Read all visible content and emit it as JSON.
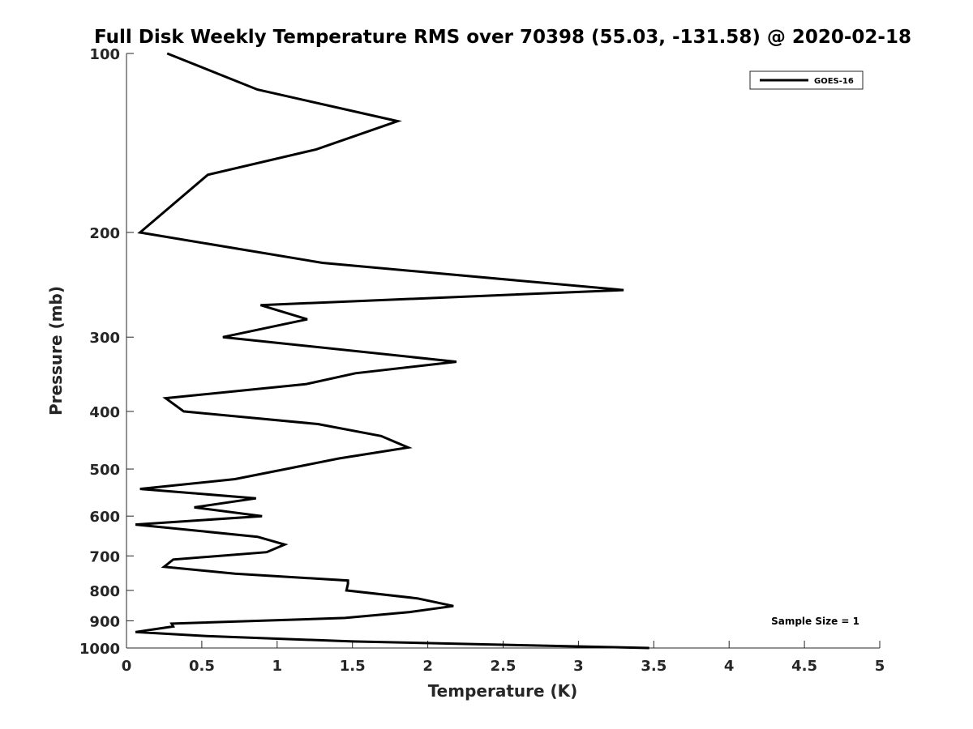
{
  "chart_data": {
    "type": "line",
    "title": "Full Disk Weekly Temperature RMS over 70398 (55.03, -131.58) @ 2020-02-18",
    "xlabel": "Temperature (K)",
    "ylabel": "Pressure (mb)",
    "xlim": [
      0,
      5
    ],
    "ylim": [
      1000,
      100
    ],
    "y_scale": "log",
    "y_reversed": true,
    "x_ticks": [
      0,
      0.5,
      1,
      1.5,
      2,
      2.5,
      3,
      3.5,
      4,
      4.5,
      5
    ],
    "x_tick_labels": [
      "0",
      "0.5",
      "1",
      "1.5",
      "2",
      "2.5",
      "3",
      "3.5",
      "4",
      "4.5",
      "5"
    ],
    "y_ticks": [
      100,
      200,
      300,
      400,
      500,
      600,
      700,
      800,
      900,
      1000
    ],
    "y_tick_labels": [
      "100",
      "200",
      "300",
      "400",
      "500",
      "600",
      "700",
      "800",
      "900",
      "1000"
    ],
    "grid": false,
    "legend_position": "top-right",
    "series": [
      {
        "name": "GOES-16",
        "color": "#000000",
        "x": [
          0.27,
          0.87,
          1.8,
          1.26,
          0.54,
          0.09,
          1.3,
          3.3,
          0.89,
          1.2,
          0.64,
          2.19,
          1.52,
          1.19,
          0.26,
          0.38,
          1.27,
          1.69,
          1.87,
          1.41,
          1.06,
          0.72,
          0.09,
          0.86,
          0.45,
          0.9,
          0.06,
          0.87,
          1.05,
          0.93,
          0.31,
          0.25,
          0.72,
          1.47,
          1.47,
          1.46,
          1.93,
          2.17,
          1.88,
          1.45,
          0.3,
          0.31,
          0.06,
          0.53,
          1.5,
          3.47
        ],
        "y": [
          100,
          115,
          130,
          145,
          160,
          200,
          225,
          250,
          265,
          280,
          300,
          330,
          345,
          360,
          380,
          400,
          420,
          440,
          460,
          480,
          500,
          520,
          540,
          560,
          580,
          600,
          620,
          650,
          670,
          690,
          710,
          730,
          750,
          770,
          780,
          800,
          825,
          850,
          870,
          890,
          910,
          920,
          940,
          955,
          975,
          1000
        ]
      }
    ],
    "annotations": [
      "Sample Size = 1"
    ]
  }
}
